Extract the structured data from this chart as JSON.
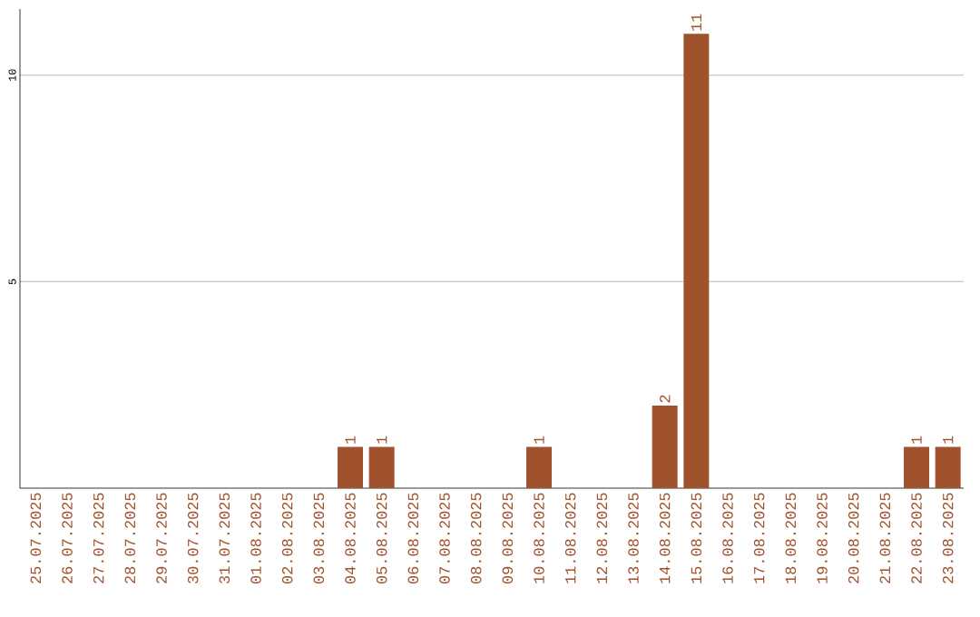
{
  "chart_data": {
    "type": "bar",
    "categories": [
      "25.07.2025",
      "26.07.2025",
      "27.07.2025",
      "28.07.2025",
      "29.07.2025",
      "30.07.2025",
      "31.07.2025",
      "01.08.2025",
      "02.08.2025",
      "03.08.2025",
      "04.08.2025",
      "05.08.2025",
      "06.08.2025",
      "07.08.2025",
      "08.08.2025",
      "09.08.2025",
      "10.08.2025",
      "11.08.2025",
      "12.08.2025",
      "13.08.2025",
      "14.08.2025",
      "15.08.2025",
      "16.08.2025",
      "17.08.2025",
      "18.08.2025",
      "19.08.2025",
      "20.08.2025",
      "21.08.2025",
      "22.08.2025",
      "23.08.2025"
    ],
    "values": [
      0,
      0,
      0,
      0,
      0,
      0,
      0,
      0,
      0,
      0,
      1,
      1,
      0,
      0,
      0,
      0,
      1,
      0,
      0,
      0,
      2,
      11,
      0,
      0,
      0,
      0,
      0,
      0,
      1,
      1
    ],
    "value_labels": [
      null,
      null,
      null,
      null,
      null,
      null,
      null,
      null,
      null,
      null,
      "1",
      "1",
      null,
      null,
      null,
      null,
      "1",
      null,
      null,
      null,
      "2",
      "11",
      null,
      null,
      null,
      null,
      null,
      null,
      "1",
      "1"
    ],
    "color": "#a0522d",
    "ylim": [
      0,
      11.6
    ],
    "yticks": [
      5,
      10
    ],
    "grid": "y"
  }
}
